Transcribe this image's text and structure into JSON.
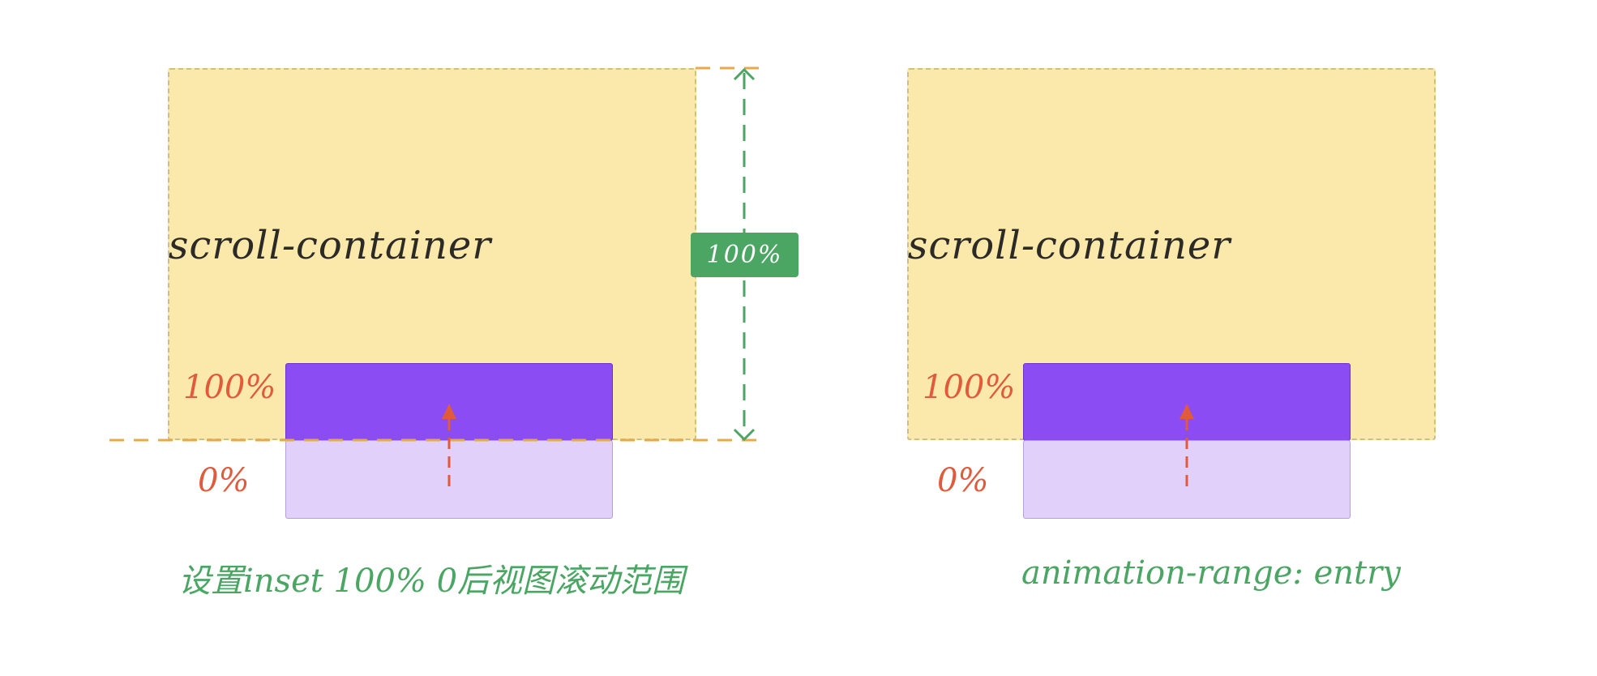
{
  "colors": {
    "container_fill": "#fae9ab",
    "container_border": "#cfbd8a",
    "target_entered": "#8c4cf4",
    "target_pending": "#e1d0fa",
    "marker_text": "#e05a3c",
    "caption_text": "#4aa662",
    "guide_line": "#e8a94a",
    "badge_fill": "#4aa662"
  },
  "left": {
    "container_label": "scroll-container",
    "marker_top": "100%",
    "marker_bottom": "0%",
    "range_badge": "100%",
    "caption": "设置inset 100% 0后视图滚动范围"
  },
  "right": {
    "container_label": "scroll-container",
    "marker_top": "100%",
    "marker_bottom": "0%",
    "caption": "animation-range: entry"
  },
  "icons": {
    "scroll_arrow": "arrow-up-icon",
    "range_arrow": "double-arrow-vertical-icon"
  }
}
